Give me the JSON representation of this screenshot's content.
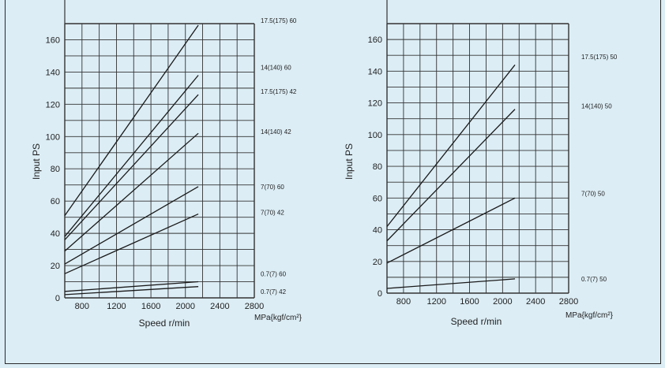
{
  "chart_data": [
    {
      "type": "line",
      "ylabel": "Input PS",
      "xlabel": "Speed r/min",
      "x_unit_label": "MPa{kgf/cm²}",
      "xlim": [
        600,
        2800
      ],
      "ylim": [
        0,
        170
      ],
      "x_ticks": [
        800,
        1200,
        1600,
        2000,
        2400,
        2800
      ],
      "y_ticks": [
        0,
        20,
        40,
        60,
        80,
        100,
        120,
        140,
        160
      ],
      "grid": true,
      "series": [
        {
          "name": "17.5(175)  60",
          "points": [
            [
              600,
              51
            ],
            [
              2150,
              169
            ]
          ]
        },
        {
          "name": "14(140)  60",
          "points": [
            [
              600,
              38
            ],
            [
              2150,
              138
            ]
          ]
        },
        {
          "name": "17.5(175)  42",
          "points": [
            [
              600,
              36
            ],
            [
              2150,
              126
            ]
          ]
        },
        {
          "name": "14(140)  42",
          "points": [
            [
              600,
              29
            ],
            [
              2150,
              102
            ]
          ]
        },
        {
          "name": "7(70)  60",
          "points": [
            [
              600,
              21
            ],
            [
              2150,
              69
            ]
          ]
        },
        {
          "name": "7(70)  42",
          "points": [
            [
              600,
              15
            ],
            [
              2150,
              52
            ]
          ]
        },
        {
          "name": "0.7(7)  60",
          "points": [
            [
              600,
              4
            ],
            [
              2150,
              10
            ]
          ]
        },
        {
          "name": "0.7(7)  42",
          "points": [
            [
              600,
              2
            ],
            [
              2150,
              7
            ]
          ]
        }
      ],
      "label_values": [
        172,
        143,
        128,
        103,
        69,
        53,
        15,
        4
      ]
    },
    {
      "type": "line",
      "ylabel": "Input PS",
      "xlabel": "Speed r/min",
      "x_unit_label": "MPa{kgf/cm²}",
      "xlim": [
        600,
        2800
      ],
      "ylim": [
        0,
        170
      ],
      "x_ticks": [
        800,
        1200,
        1600,
        2000,
        2400,
        2800
      ],
      "y_ticks": [
        0,
        20,
        40,
        60,
        80,
        100,
        120,
        140,
        160
      ],
      "grid": true,
      "series": [
        {
          "name": "17.5(175)  50",
          "points": [
            [
              600,
              42
            ],
            [
              2150,
              144
            ]
          ]
        },
        {
          "name": "14(140)  50",
          "points": [
            [
              600,
              33
            ],
            [
              2150,
              116
            ]
          ]
        },
        {
          "name": "7(70)  50",
          "points": [
            [
              600,
              19
            ],
            [
              2150,
              60
            ]
          ]
        },
        {
          "name": "0.7(7)  50",
          "points": [
            [
              600,
              3
            ],
            [
              2150,
              9
            ]
          ]
        }
      ],
      "label_values": [
        149,
        118,
        63,
        9
      ]
    }
  ]
}
